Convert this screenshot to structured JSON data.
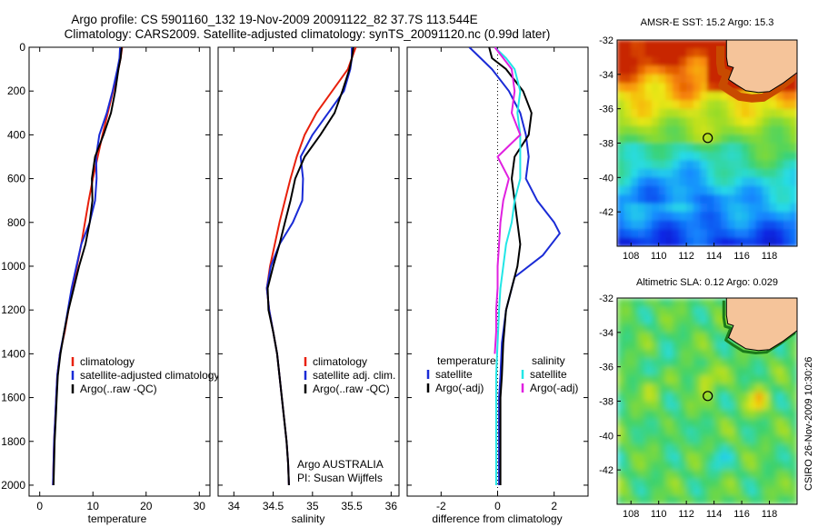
{
  "header": {
    "line1": "Argo profile: CS 5901160_132 19-Nov-2009 20091122_82 37.7S 113.544E",
    "line2": "Climatology: CARS2009. Satellite-adjusted climatology: synTS_20091120.nc (0.99d later)"
  },
  "colors": {
    "climatology": "#e8200c",
    "satellite": "#1a2bd6",
    "argo": "#000000",
    "cyan": "#22e6e6",
    "magenta": "#e020e0",
    "land": "#f5c49a"
  },
  "credit": {
    "agency": "Argo AUSTRALIA",
    "pi": "PI: Susan Wijffels",
    "stamp": "CSIRO 26-Nov-2009 10:30:26"
  },
  "chart_data": [
    {
      "type": "line",
      "xlabel": "temperature",
      "ylabel": "",
      "xlim": [
        -2,
        32
      ],
      "ylim": [
        2050,
        0
      ],
      "xticks": [
        "0",
        "10",
        "20",
        "30"
      ],
      "yticks": [
        "0",
        "200",
        "400",
        "600",
        "800",
        "1000",
        "1200",
        "1400",
        "1600",
        "1800",
        "2000"
      ],
      "legend": [
        "climatology",
        "satellite-adjusted climatology",
        "Argo(..raw -QC)"
      ],
      "legend_position": "lower-right",
      "series": [
        {
          "name": "climatology",
          "color": "climatology",
          "x": [
            15.5,
            15.2,
            14.8,
            13.8,
            12.8,
            11.8,
            10.9,
            10.0,
            9.2,
            8.5,
            7.8,
            7.0,
            6.2,
            5.4,
            4.7,
            3.8,
            3.3,
            3.1,
            2.9,
            2.7,
            2.6,
            2.5
          ],
          "y": [
            0,
            50,
            100,
            200,
            300,
            400,
            500,
            600,
            700,
            800,
            900,
            1000,
            1100,
            1200,
            1300,
            1400,
            1500,
            1600,
            1700,
            1800,
            1900,
            2000
          ]
        },
        {
          "name": "satellite-adjusted climatology",
          "color": "satellite",
          "x": [
            15.1,
            15.0,
            14.6,
            13.7,
            12.6,
            11.2,
            10.6,
            10.7,
            10.4,
            9.4,
            7.8,
            6.9,
            6.0,
            5.3,
            4.6,
            3.8,
            3.3,
            3.1,
            2.9,
            2.7,
            2.6,
            2.5
          ],
          "y": [
            0,
            50,
            100,
            200,
            300,
            400,
            500,
            600,
            700,
            800,
            900,
            1000,
            1100,
            1200,
            1300,
            1400,
            1500,
            1600,
            1700,
            1800,
            1900,
            2000
          ]
        },
        {
          "name": "Argo(..raw -QC)",
          "color": "argo",
          "x": [
            15.4,
            15.2,
            14.8,
            14.2,
            13.4,
            12.0,
            10.4,
            9.8,
            9.9,
            9.4,
            8.6,
            7.4,
            6.4,
            5.4,
            4.6,
            3.9,
            3.4,
            3.2,
            3.0,
            2.8,
            2.7,
            2.6
          ],
          "y": [
            0,
            50,
            100,
            200,
            300,
            400,
            500,
            600,
            700,
            800,
            900,
            1000,
            1100,
            1200,
            1300,
            1400,
            1500,
            1600,
            1700,
            1800,
            1900,
            2000
          ]
        }
      ]
    },
    {
      "type": "line",
      "xlabel": "salinity",
      "ylabel": "",
      "xlim": [
        33.8,
        36.1
      ],
      "ylim": [
        2050,
        0
      ],
      "xticks": [
        "34",
        "34.5",
        "35",
        "35.5",
        "36"
      ],
      "legend": [
        "climatology",
        "satellite adj. clim.",
        "Argo(..raw -QC)"
      ],
      "legend_position": "lower-right",
      "series": [
        {
          "name": "climatology",
          "color": "climatology",
          "x": [
            35.55,
            35.5,
            35.45,
            35.25,
            35.05,
            34.9,
            34.8,
            34.72,
            34.65,
            34.58,
            34.52,
            34.46,
            34.42,
            34.45,
            34.5,
            34.55,
            34.58,
            34.61,
            34.64,
            34.67,
            34.69,
            34.7
          ],
          "y": [
            0,
            50,
            100,
            200,
            300,
            400,
            500,
            600,
            700,
            800,
            900,
            1000,
            1100,
            1200,
            1300,
            1400,
            1500,
            1600,
            1700,
            1800,
            1900,
            2000
          ]
        },
        {
          "name": "satellite adj. clim.",
          "color": "satellite",
          "x": [
            35.5,
            35.5,
            35.48,
            35.4,
            35.2,
            35.0,
            34.85,
            34.88,
            34.87,
            34.75,
            34.58,
            34.47,
            34.42,
            34.45,
            34.5,
            34.55,
            34.58,
            34.61,
            34.64,
            34.67,
            34.69,
            34.7
          ],
          "y": [
            0,
            50,
            100,
            200,
            300,
            400,
            500,
            600,
            700,
            800,
            900,
            1000,
            1100,
            1200,
            1300,
            1400,
            1500,
            1600,
            1700,
            1800,
            1900,
            2000
          ]
        },
        {
          "name": "Argo(..raw -QC)",
          "color": "argo",
          "x": [
            35.52,
            35.5,
            35.47,
            35.38,
            35.28,
            35.1,
            34.9,
            34.78,
            34.72,
            34.65,
            34.58,
            34.5,
            34.43,
            34.44,
            34.5,
            34.55,
            34.58,
            34.61,
            34.64,
            34.67,
            34.69,
            34.7
          ],
          "y": [
            0,
            50,
            100,
            200,
            300,
            400,
            500,
            600,
            700,
            800,
            900,
            1000,
            1100,
            1200,
            1300,
            1400,
            1500,
            1600,
            1700,
            1800,
            1900,
            2000
          ]
        }
      ]
    },
    {
      "type": "line",
      "xlabel": "difference from climatology",
      "ylabel": "",
      "xlim": [
        -3.2,
        3.2
      ],
      "ylim": [
        2050,
        0
      ],
      "xticks": [
        "-2",
        "0",
        "2"
      ],
      "zero_line": true,
      "legend_groups": [
        {
          "title": "temperature",
          "items": [
            "satellite",
            "Argo(-adj)"
          ]
        },
        {
          "title": "salinity",
          "items": [
            "satellite",
            "Argo(-adj)"
          ]
        }
      ],
      "legend_position": "lower-center",
      "series": [
        {
          "name": "temperature satellite",
          "color": "satellite",
          "x": [
            -1.0,
            -0.6,
            -0.2,
            0.4,
            0.8,
            1.0,
            1.1,
            1.0,
            1.4,
            2.0,
            2.2,
            1.6,
            0.6,
            0.3,
            0.15,
            0.1,
            0.05,
            0.05,
            0.05,
            0.05,
            0.05
          ],
          "y": [
            0,
            50,
            100,
            200,
            300,
            400,
            500,
            600,
            700,
            800,
            850,
            950,
            1050,
            1200,
            1350,
            1500,
            1600,
            1700,
            1800,
            1900,
            2000
          ]
        },
        {
          "name": "temperature Argo(-adj)",
          "color": "argo",
          "x": [
            -0.3,
            -0.2,
            0.3,
            0.9,
            1.2,
            1.1,
            0.6,
            0.5,
            0.6,
            0.7,
            0.8,
            0.7,
            0.5,
            0.3,
            0.2,
            0.15,
            0.1,
            0.1,
            0.1,
            0.1,
            0.1
          ],
          "y": [
            0,
            50,
            100,
            200,
            300,
            400,
            500,
            600,
            700,
            800,
            900,
            1000,
            1100,
            1200,
            1350,
            1500,
            1600,
            1700,
            1800,
            1900,
            2000
          ]
        },
        {
          "name": "salinity satellite",
          "color": "cyan",
          "x": [
            -0.1,
            0.3,
            0.6,
            0.8,
            0.7,
            0.8,
            0.8,
            0.8,
            0.6,
            0.5,
            0.3,
            0.2,
            0.1,
            0.05,
            0.0,
            -0.05,
            -0.05,
            -0.05,
            -0.05,
            -0.05,
            -0.05
          ],
          "y": [
            0,
            50,
            100,
            200,
            300,
            400,
            500,
            600,
            700,
            800,
            900,
            1000,
            1100,
            1200,
            1350,
            1500,
            1600,
            1700,
            1800,
            1900,
            2000
          ]
        },
        {
          "name": "salinity Argo(-adj)",
          "color": "magenta",
          "x": [
            -0.1,
            0.2,
            0.5,
            0.6,
            0.5,
            0.8,
            0.0,
            0.4,
            0.2,
            0.1,
            0.05,
            0.0,
            0.0,
            -0.05,
            -0.05,
            -0.1
          ],
          "y": [
            0,
            50,
            100,
            200,
            300,
            400,
            500,
            600,
            700,
            800,
            900,
            1000,
            1100,
            1200,
            1300,
            1400
          ]
        }
      ]
    },
    {
      "type": "heatmap",
      "title": "AMSR-E SST: 15.2  Argo: 15.3",
      "xlabel": "",
      "ylabel": "",
      "xlim": [
        107,
        120
      ],
      "ylim": [
        -44,
        -32
      ],
      "xticks": [
        "108",
        "110",
        "112",
        "114",
        "116",
        "118"
      ],
      "yticks": [
        "-32",
        "-34",
        "-36",
        "-38",
        "-40",
        "-42"
      ],
      "marker": {
        "lon": 113.544,
        "lat": -37.7
      }
    },
    {
      "type": "heatmap",
      "title": "Altimetric SLA: 0.12  Argo: 0.029",
      "xlabel": "",
      "ylabel": "",
      "xlim": [
        107,
        120
      ],
      "ylim": [
        -44,
        -32
      ],
      "xticks": [
        "108",
        "110",
        "112",
        "114",
        "116",
        "118"
      ],
      "yticks": [
        "-32",
        "-34",
        "-36",
        "-38",
        "-40",
        "-42"
      ],
      "marker": {
        "lon": 113.544,
        "lat": -37.7
      }
    }
  ]
}
